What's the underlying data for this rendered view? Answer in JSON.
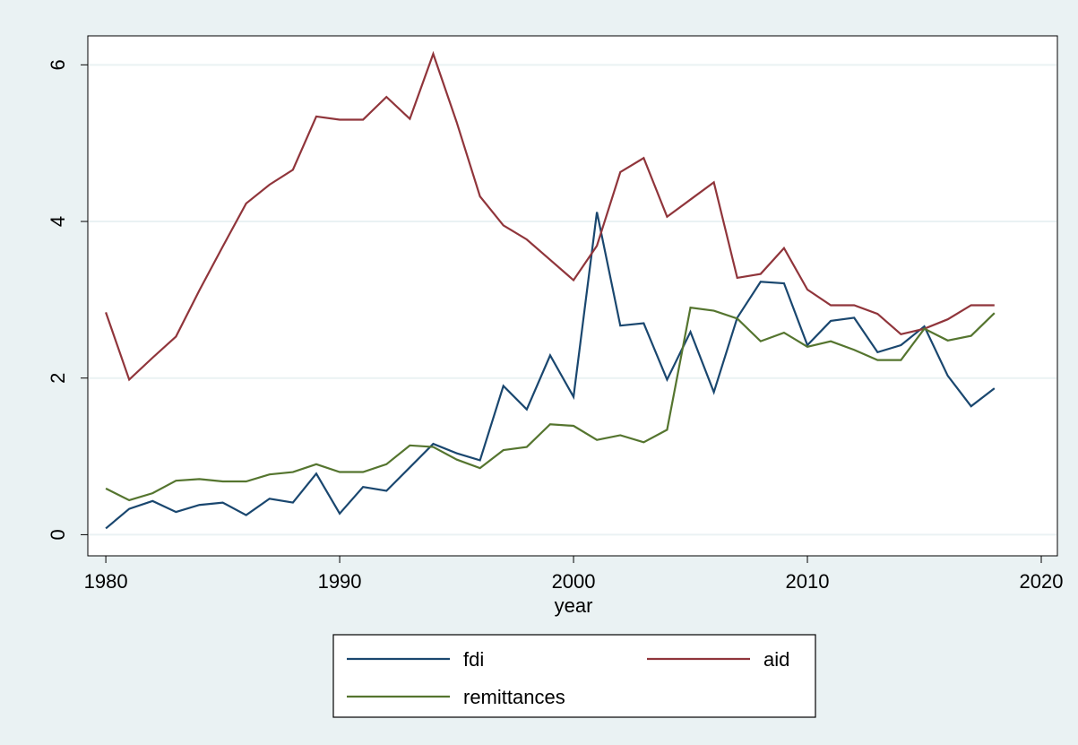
{
  "chart_data": {
    "type": "line",
    "x_label": "year",
    "x": [
      1980,
      1981,
      1982,
      1983,
      1984,
      1985,
      1986,
      1987,
      1988,
      1989,
      1990,
      1991,
      1992,
      1993,
      1994,
      1995,
      1996,
      1997,
      1998,
      1999,
      2000,
      2001,
      2002,
      2003,
      2004,
      2005,
      2006,
      2007,
      2008,
      2009,
      2010,
      2011,
      2012,
      2013,
      2014,
      2015,
      2016,
      2017,
      2018
    ],
    "series": [
      {
        "name": "fdi",
        "color": "#1a476f",
        "values": [
          0.08,
          0.33,
          0.43,
          0.29,
          0.38,
          0.41,
          0.25,
          0.46,
          0.41,
          0.78,
          0.27,
          0.61,
          0.56,
          0.86,
          1.16,
          1.04,
          0.95,
          1.9,
          1.6,
          2.29,
          1.76,
          4.12,
          2.67,
          2.7,
          1.98,
          2.59,
          1.82,
          2.77,
          3.23,
          3.21,
          2.42,
          2.73,
          2.77,
          2.33,
          2.42,
          2.66,
          2.03,
          1.64,
          1.87
        ]
      },
      {
        "name": "aid",
        "color": "#90353b",
        "values": [
          2.84,
          1.98,
          2.26,
          2.53,
          3.12,
          3.68,
          4.23,
          4.47,
          4.66,
          5.34,
          5.3,
          5.3,
          5.59,
          5.31,
          6.14,
          5.27,
          4.32,
          3.95,
          3.77,
          3.51,
          3.25,
          3.69,
          4.63,
          4.81,
          4.06,
          4.28,
          4.5,
          3.28,
          3.33,
          3.66,
          3.13,
          2.93,
          2.93,
          2.82,
          2.56,
          2.63,
          2.75,
          2.93,
          2.93
        ]
      },
      {
        "name": "remittances",
        "color": "#55752f",
        "values": [
          0.59,
          0.44,
          0.53,
          0.69,
          0.71,
          0.68,
          0.68,
          0.77,
          0.8,
          0.9,
          0.8,
          0.8,
          0.9,
          1.14,
          1.12,
          0.96,
          0.85,
          1.08,
          1.12,
          1.41,
          1.39,
          1.21,
          1.27,
          1.18,
          1.34,
          2.9,
          2.86,
          2.76,
          2.47,
          2.58,
          2.4,
          2.47,
          2.36,
          2.23,
          2.23,
          2.63,
          2.48,
          2.54,
          2.83
        ]
      }
    ],
    "xlim": [
      1979.23,
      2020.69
    ],
    "xticks": [
      1980,
      1990,
      2000,
      2010,
      2020
    ],
    "ylim": [
      -0.27,
      6.37
    ],
    "yticks": [
      0,
      2,
      4,
      6
    ],
    "grid": true
  }
}
